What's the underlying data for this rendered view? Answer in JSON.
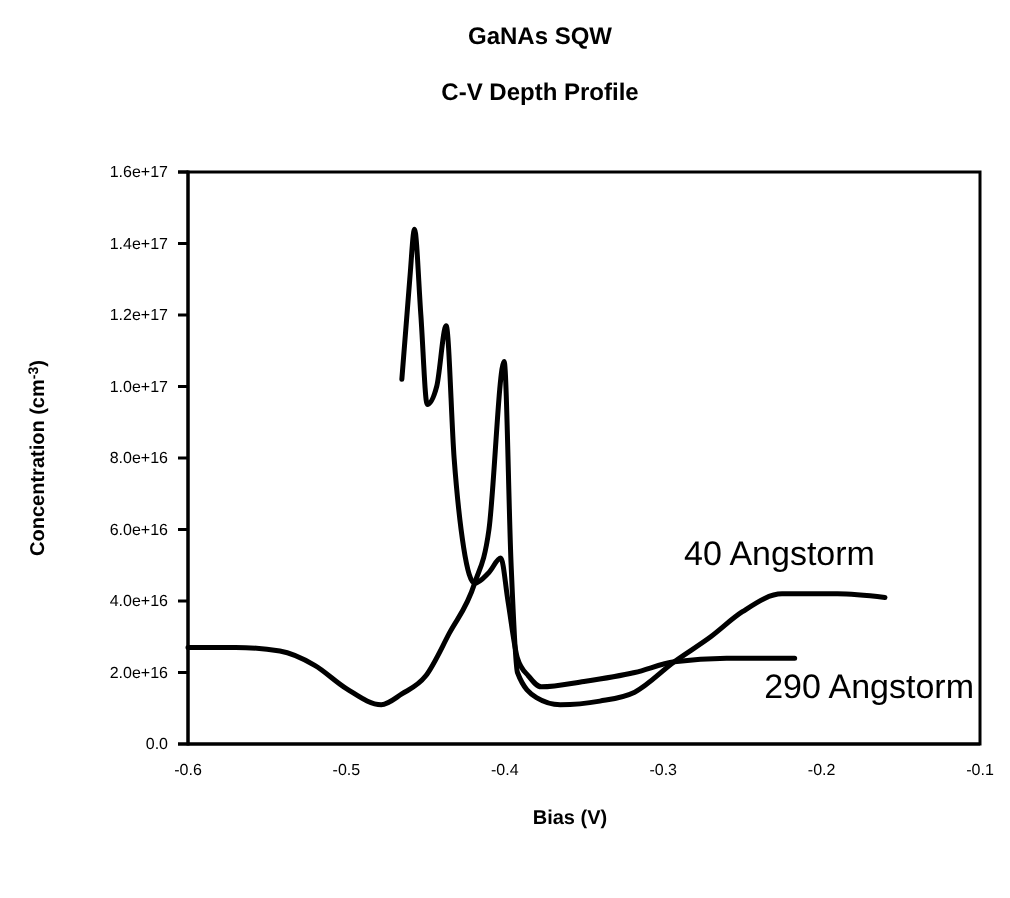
{
  "chart_data": {
    "type": "line",
    "title": "GaNAs SQW",
    "subtitle": "C-V Depth Profile",
    "xlabel": "Bias (V)",
    "ylabel": "Concentration (cm$^{-3}$)",
    "xlim": [
      -0.6,
      -0.1
    ],
    "xticks": [
      -0.6,
      -0.5,
      -0.4,
      -0.3,
      -0.2,
      -0.1
    ],
    "ylim": [
      0,
      1.6e+17
    ],
    "yticks": [
      {
        "value": 0,
        "label": "0.0"
      },
      {
        "value": 2e+16,
        "label": "2.0e+16"
      },
      {
        "value": 4e+16,
        "label": "4.0e+16"
      },
      {
        "value": 6e+16,
        "label": "6.0e+16"
      },
      {
        "value": 8e+16,
        "label": "8.0e+16"
      },
      {
        "value": 1e+17,
        "label": "1.0e+17"
      },
      {
        "value": 1.2e+17,
        "label": "1.2e+17"
      },
      {
        "value": 1.4e+17,
        "label": "1.4e+17"
      },
      {
        "value": 1.6e+17,
        "label": "1.6e+17"
      }
    ],
    "grid": false,
    "marker": "none",
    "line_style": "solid",
    "series": [
      {
        "name": "40 Angstorm",
        "color": "#000000",
        "x": [
          -0.6,
          -0.57,
          -0.542,
          -0.52,
          -0.5,
          -0.478,
          -0.465,
          -0.45,
          -0.435,
          -0.419,
          -0.41,
          -0.4004,
          -0.396,
          -0.392,
          -0.38,
          -0.365,
          -0.34,
          -0.318,
          -0.293,
          -0.27,
          -0.25,
          -0.225,
          -0.19,
          -0.16
        ],
        "values": [
          2.7e+16,
          2.7e+16,
          2.6e+16,
          2.2e+16,
          1.55e+16,
          1.1e+16,
          1.4e+16,
          1.9e+16,
          3.1e+16,
          4.5e+16,
          6e+16,
          1.07e+17,
          5e+16,
          2e+16,
          1.3e+16,
          1.1e+16,
          1.2e+16,
          1.45e+16,
          2.3e+16,
          3e+16,
          3.7e+16,
          4.2e+16,
          4.2e+16,
          4.1e+16
        ]
      },
      {
        "name": "290 Angstorm",
        "color": "#000000",
        "x": [
          -0.465,
          -0.46,
          -0.457,
          -0.453,
          -0.449,
          -0.443,
          -0.437,
          -0.432,
          -0.426,
          -0.419,
          -0.41,
          -0.4025,
          -0.398,
          -0.392,
          -0.385,
          -0.377,
          -0.35,
          -0.318,
          -0.293,
          -0.26,
          -0.217
        ],
        "values": [
          1.02e+17,
          1.3e+17,
          1.44e+17,
          1.2e+17,
          9.5e+16,
          1e+17,
          1.17e+17,
          8e+16,
          5.5e+16,
          4.5e+16,
          4.8e+16,
          5.2e+16,
          4e+16,
          2.4e+16,
          1.9e+16,
          1.6e+16,
          1.75e+16,
          2e+16,
          2.3e+16,
          2.4e+16,
          2.4e+16
        ]
      }
    ]
  }
}
